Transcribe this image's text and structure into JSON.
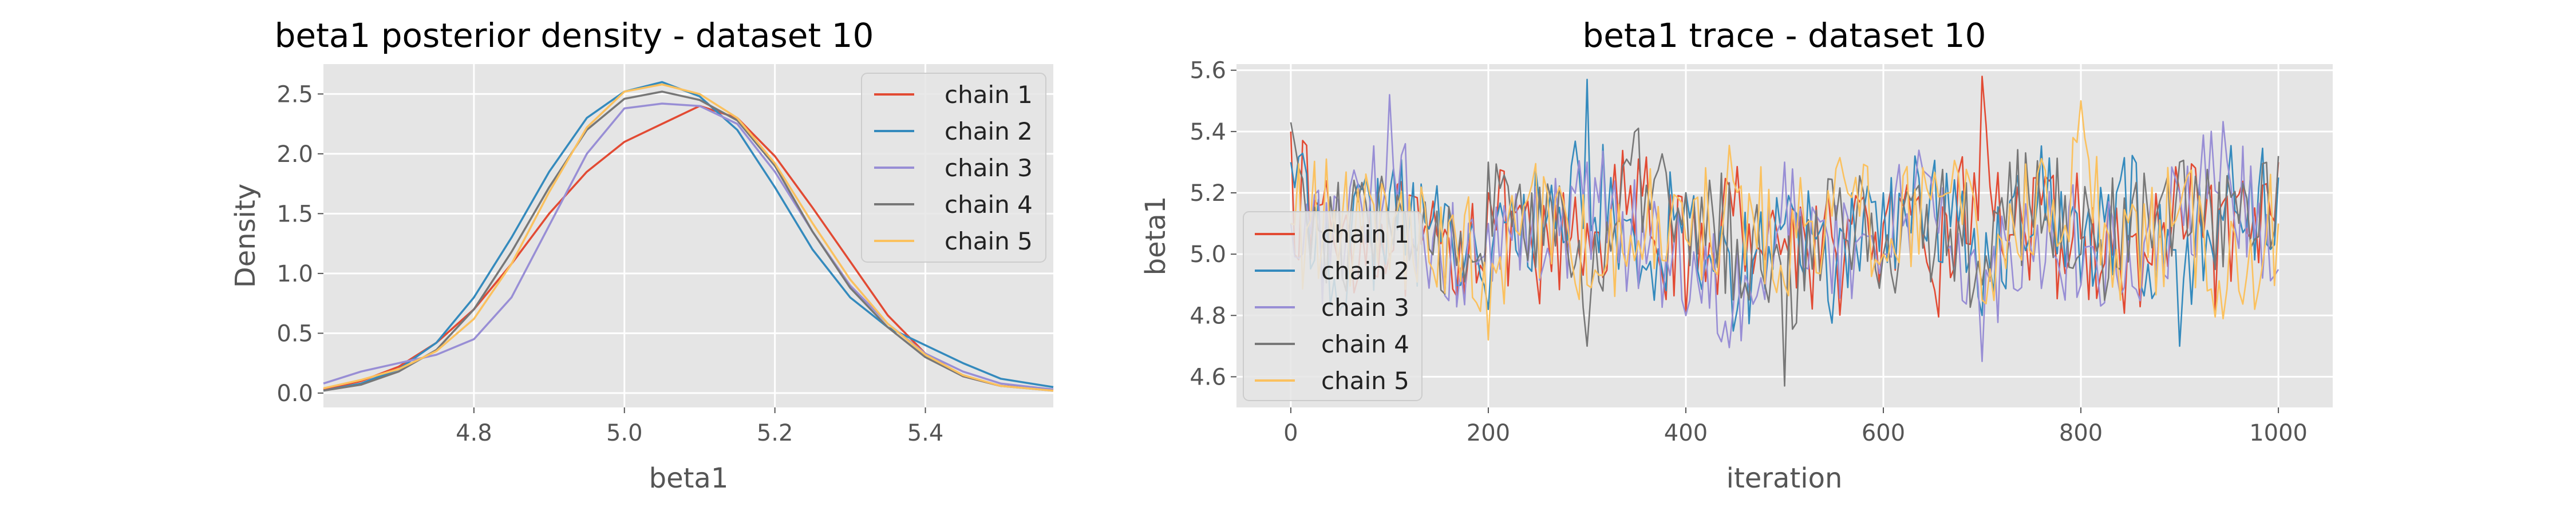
{
  "chart_data": [
    {
      "type": "line",
      "title": "beta1 posterior density - dataset 10",
      "xlabel": "beta1",
      "ylabel": "Density",
      "xlim": [
        4.6,
        5.57
      ],
      "ylim": [
        -0.12,
        2.75
      ],
      "xticks": [
        4.8,
        5.0,
        5.2,
        5.4
      ],
      "xtick_labels": [
        "4.8",
        "5.0",
        "5.2",
        "5.4"
      ],
      "yticks": [
        0.0,
        0.5,
        1.0,
        1.5,
        2.0,
        2.5
      ],
      "ytick_labels": [
        "0.0",
        "0.5",
        "1.0",
        "1.5",
        "2.0",
        "2.5"
      ],
      "grid": true,
      "legend_position": "top-right",
      "series": [
        {
          "name": "chain 1",
          "color": "#E24A33",
          "x": [
            4.6,
            4.65,
            4.7,
            4.75,
            4.8,
            4.85,
            4.9,
            4.95,
            5.0,
            5.05,
            5.1,
            5.15,
            5.2,
            5.25,
            5.3,
            5.35,
            5.4,
            5.45,
            5.5,
            5.57
          ],
          "y": [
            0.03,
            0.1,
            0.22,
            0.42,
            0.7,
            1.08,
            1.5,
            1.85,
            2.1,
            2.25,
            2.4,
            2.3,
            1.98,
            1.55,
            1.1,
            0.65,
            0.33,
            0.14,
            0.06,
            0.03
          ]
        },
        {
          "name": "chain 2",
          "color": "#348ABD",
          "x": [
            4.6,
            4.65,
            4.7,
            4.75,
            4.8,
            4.85,
            4.9,
            4.95,
            5.0,
            5.05,
            5.1,
            5.15,
            5.2,
            5.25,
            5.3,
            5.35,
            5.4,
            5.45,
            5.5,
            5.57
          ],
          "y": [
            0.02,
            0.08,
            0.2,
            0.42,
            0.8,
            1.3,
            1.85,
            2.3,
            2.52,
            2.6,
            2.48,
            2.2,
            1.72,
            1.2,
            0.8,
            0.55,
            0.4,
            0.25,
            0.12,
            0.05
          ]
        },
        {
          "name": "chain 3",
          "color": "#988ED5",
          "x": [
            4.6,
            4.65,
            4.7,
            4.75,
            4.8,
            4.85,
            4.9,
            4.95,
            5.0,
            5.05,
            5.1,
            5.15,
            5.2,
            5.25,
            5.3,
            5.35,
            5.4,
            5.45,
            5.5,
            5.57
          ],
          "y": [
            0.08,
            0.18,
            0.25,
            0.32,
            0.45,
            0.8,
            1.4,
            2.0,
            2.38,
            2.42,
            2.4,
            2.25,
            1.85,
            1.35,
            0.9,
            0.58,
            0.33,
            0.18,
            0.08,
            0.03
          ]
        },
        {
          "name": "chain 4",
          "color": "#777777",
          "x": [
            4.6,
            4.65,
            4.7,
            4.75,
            4.8,
            4.85,
            4.9,
            4.95,
            5.0,
            5.05,
            5.1,
            5.15,
            5.2,
            5.25,
            5.3,
            5.35,
            5.4,
            5.45,
            5.5,
            5.57
          ],
          "y": [
            0.02,
            0.07,
            0.18,
            0.36,
            0.7,
            1.18,
            1.72,
            2.2,
            2.46,
            2.52,
            2.45,
            2.28,
            1.9,
            1.35,
            0.88,
            0.55,
            0.3,
            0.14,
            0.06,
            0.02
          ]
        },
        {
          "name": "chain 5",
          "color": "#FBC15E",
          "x": [
            4.6,
            4.65,
            4.7,
            4.75,
            4.8,
            4.85,
            4.9,
            4.95,
            5.0,
            5.05,
            5.1,
            5.15,
            5.2,
            5.25,
            5.3,
            5.35,
            5.4,
            5.45,
            5.5,
            5.57
          ],
          "y": [
            0.04,
            0.11,
            0.2,
            0.35,
            0.62,
            1.08,
            1.68,
            2.22,
            2.52,
            2.58,
            2.5,
            2.3,
            1.92,
            1.42,
            0.95,
            0.58,
            0.32,
            0.15,
            0.06,
            0.02
          ]
        }
      ]
    },
    {
      "type": "line",
      "title": "beta1 trace - dataset 10",
      "xlabel": "iteration",
      "ylabel": "beta1",
      "xlim": [
        -55,
        1055
      ],
      "ylim": [
        4.5,
        5.62
      ],
      "xticks": [
        0,
        200,
        400,
        600,
        800,
        1000
      ],
      "xtick_labels": [
        "0",
        "200",
        "400",
        "600",
        "800",
        "1000"
      ],
      "yticks": [
        4.6,
        4.8,
        5.0,
        5.2,
        5.4,
        5.6
      ],
      "ytick_labels": [
        "4.6",
        "4.8",
        "5.0",
        "5.2",
        "5.4",
        "5.6"
      ],
      "grid": true,
      "legend_position": "center-left",
      "n_iterations": 1000,
      "series": [
        {
          "name": "chain 1",
          "color": "#E24A33",
          "x": [
            0,
            50,
            100,
            150,
            200,
            250,
            300,
            350,
            400,
            450,
            500,
            550,
            600,
            650,
            700,
            750,
            800,
            850,
            900,
            950,
            1000
          ],
          "y": [
            5.4,
            5.1,
            5.0,
            4.74,
            5.2,
            4.7,
            5.1,
            5.3,
            4.8,
            5.2,
            5.05,
            4.85,
            5.1,
            4.72,
            5.58,
            5.0,
            5.05,
            4.66,
            5.2,
            4.8,
            5.3
          ]
        },
        {
          "name": "chain 2",
          "color": "#348ABD",
          "x": [
            0,
            50,
            100,
            150,
            200,
            250,
            300,
            350,
            400,
            450,
            500,
            550,
            600,
            650,
            700,
            750,
            800,
            850,
            900,
            950,
            1000
          ],
          "y": [
            5.3,
            4.85,
            5.2,
            5.1,
            4.82,
            5.1,
            5.57,
            4.8,
            5.2,
            4.68,
            5.1,
            4.75,
            5.2,
            5.3,
            4.8,
            5.47,
            4.9,
            5.2,
            4.7,
            5.4,
            5.25
          ]
        },
        {
          "name": "chain 3",
          "color": "#988ED5",
          "x": [
            0,
            50,
            100,
            150,
            200,
            250,
            300,
            350,
            400,
            450,
            500,
            550,
            600,
            650,
            700,
            750,
            800,
            850,
            900,
            950,
            1000
          ],
          "y": [
            5.1,
            4.9,
            5.52,
            4.8,
            5.1,
            4.95,
            5.3,
            5.05,
            4.8,
            4.53,
            5.3,
            4.7,
            5.0,
            5.42,
            4.65,
            5.1,
            4.9,
            4.66,
            5.2,
            5.55,
            4.95
          ]
        },
        {
          "name": "chain 4",
          "color": "#777777",
          "x": [
            0,
            50,
            100,
            150,
            200,
            250,
            300,
            350,
            400,
            450,
            500,
            550,
            600,
            650,
            700,
            750,
            800,
            850,
            900,
            950,
            1000
          ],
          "y": [
            5.43,
            5.0,
            5.1,
            4.9,
            5.3,
            5.05,
            4.7,
            5.45,
            5.2,
            5.0,
            4.57,
            5.25,
            5.0,
            5.1,
            4.9,
            5.4,
            5.0,
            4.95,
            5.3,
            5.0,
            5.32
          ]
        },
        {
          "name": "chain 5",
          "color": "#FBC15E",
          "x": [
            0,
            50,
            100,
            150,
            200,
            250,
            300,
            350,
            400,
            450,
            500,
            550,
            600,
            650,
            700,
            750,
            800,
            850,
            900,
            950,
            1000
          ],
          "y": [
            5.1,
            5.2,
            4.95,
            5.05,
            4.72,
            5.2,
            4.9,
            5.1,
            5.05,
            5.35,
            4.9,
            5.3,
            5.0,
            5.45,
            4.85,
            5.2,
            5.5,
            4.9,
            5.15,
            4.7,
            5.1
          ]
        }
      ]
    }
  ]
}
